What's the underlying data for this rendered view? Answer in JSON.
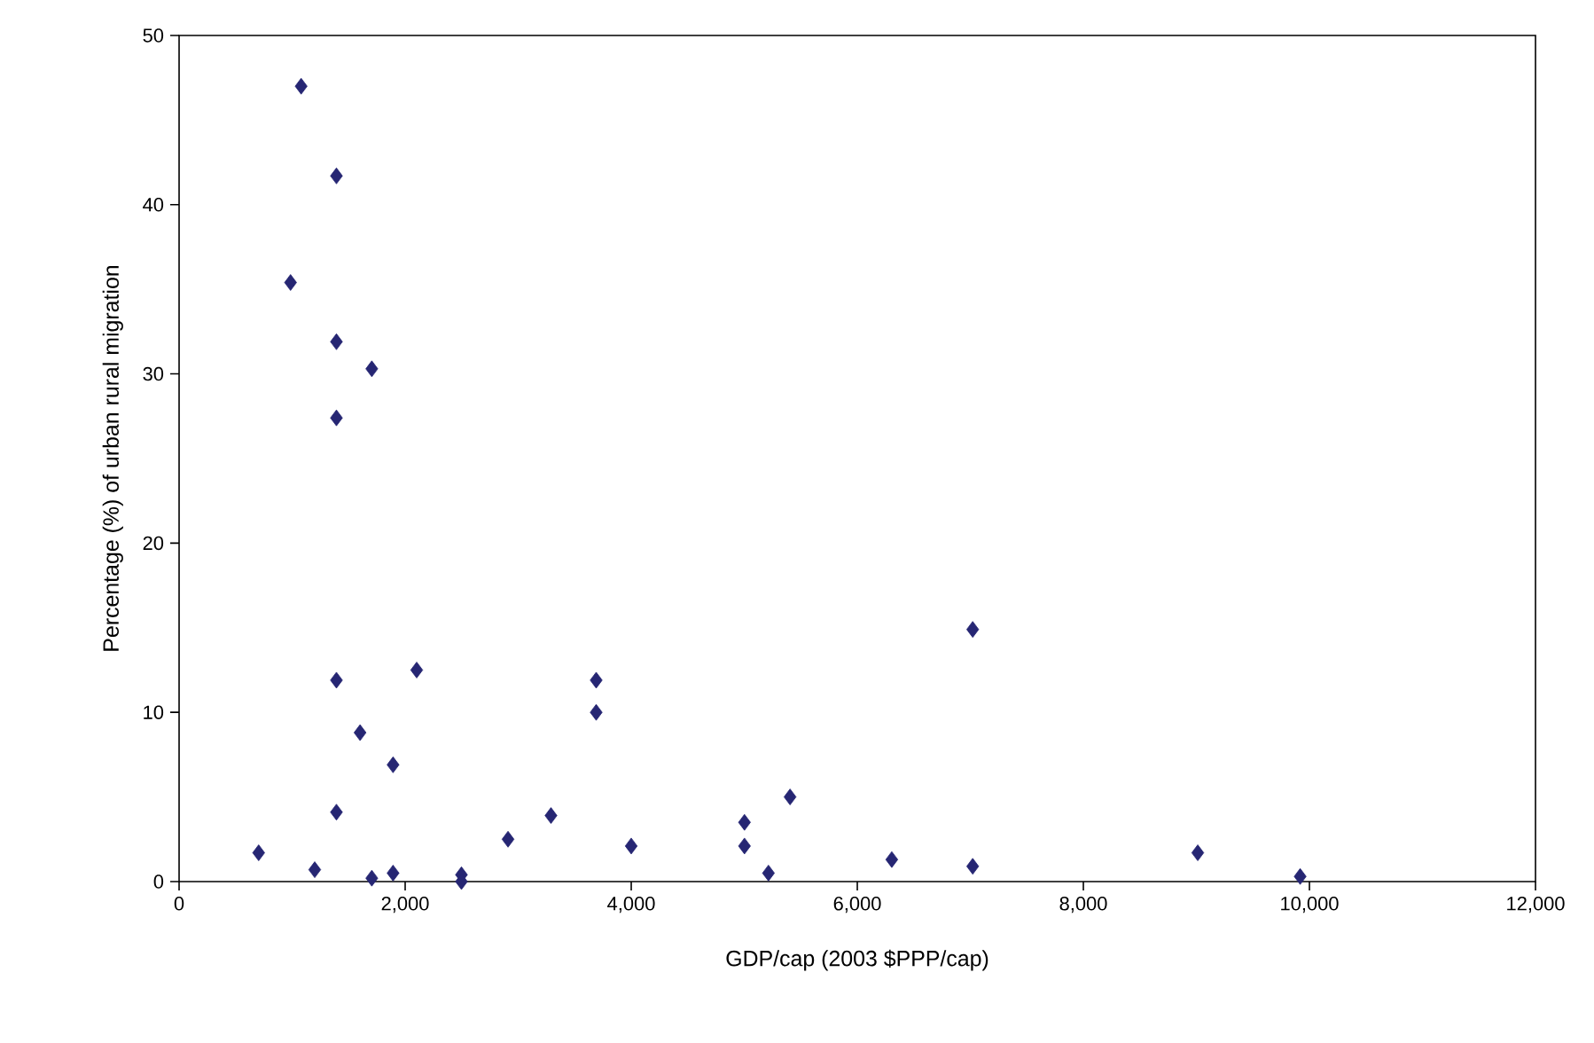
{
  "chart_data": {
    "type": "scatter",
    "xlabel": "GDP/cap (2003 $PPP/cap)",
    "ylabel": "Percentage (%) of urban rural migration",
    "x": [
      704,
      1080,
      1392,
      986,
      1392,
      1705,
      1392,
      1392,
      2102,
      3690,
      3690,
      1601,
      1893,
      1392,
      1200,
      1705,
      1893,
      2498,
      2498,
      2910,
      3290,
      4000,
      5002,
      5002,
      5214,
      5405,
      6305,
      7021,
      7021,
      9012,
      9918
    ],
    "values": [
      1.7,
      47,
      41.7,
      35.4,
      31.9,
      30.3,
      27.4,
      11.9,
      12.5,
      11.9,
      10.0,
      8.8,
      6.9,
      4.1,
      0.7,
      0.2,
      0.5,
      0.4,
      0.0,
      2.5,
      3.9,
      2.1,
      3.5,
      2.1,
      0.5,
      5.0,
      1.3,
      14.9,
      0.9,
      1.7,
      0.3
    ],
    "color": "#262673",
    "marker": "diamond",
    "xlim": [
      0,
      12000
    ],
    "ylim": [
      0,
      50
    ],
    "xticks": [
      {
        "value": 0,
        "label": "0"
      },
      {
        "value": 2000,
        "label": "2,000"
      },
      {
        "value": 4000,
        "label": "4,000"
      },
      {
        "value": 6000,
        "label": "6,000"
      },
      {
        "value": 8000,
        "label": "8,000"
      },
      {
        "value": 10000,
        "label": "10,000"
      },
      {
        "value": 12000,
        "label": "12,000"
      }
    ],
    "yticks": [
      0,
      10,
      20,
      30,
      40,
      50
    ]
  }
}
